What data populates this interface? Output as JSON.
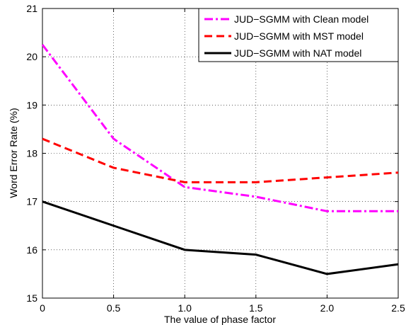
{
  "chart_data": {
    "type": "line",
    "title": "",
    "xlabel": "The value of phase factor",
    "ylabel": "Word Error Rate (%)",
    "x": [
      0,
      0.5,
      1.0,
      1.5,
      2.0,
      2.5
    ],
    "x_tick_labels": [
      "0",
      "0.5",
      "1.0",
      "1.5",
      "2.0",
      "2.5"
    ],
    "y_tick_labels": [
      "15",
      "16",
      "17",
      "18",
      "19",
      "20",
      "21"
    ],
    "xlim": [
      0,
      2.5
    ],
    "ylim": [
      15,
      21
    ],
    "grid": true,
    "legend_position": "top-right",
    "series": [
      {
        "name": "JUD−SGMM with Clean model",
        "values": [
          20.25,
          18.3,
          17.3,
          17.1,
          16.8,
          16.8
        ],
        "color": "#ff00ff",
        "style": "dash-dot"
      },
      {
        "name": "JUD−SGMM with MST model",
        "values": [
          18.3,
          17.7,
          17.4,
          17.4,
          17.5,
          17.6
        ],
        "color": "#ff0000",
        "style": "dashed"
      },
      {
        "name": "JUD−SGMM with NAT model",
        "values": [
          17.0,
          16.5,
          16.0,
          15.9,
          15.5,
          15.7
        ],
        "color": "#000000",
        "style": "solid"
      }
    ]
  }
}
